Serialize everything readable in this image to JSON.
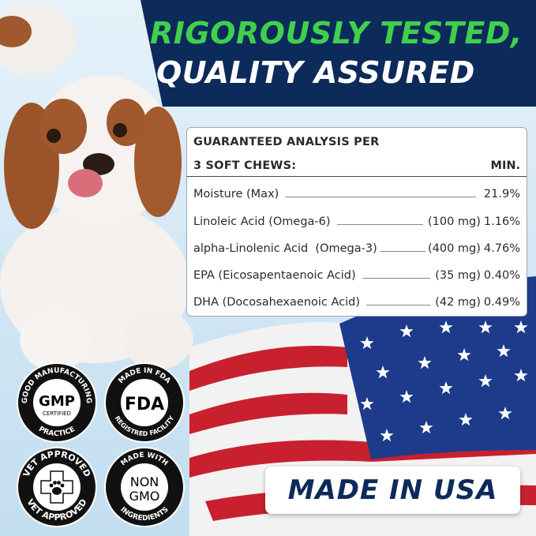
{
  "header": {
    "line1": "RIGOROUSLY TESTED,",
    "line2": "QUALITY ASSURED"
  },
  "analysis": {
    "title_line1": "GUARANTEED ANALYSIS PER",
    "title_line2": "3 SOFT CHEWS:",
    "min_label": "MIN.",
    "rows": [
      {
        "name": "Moisture (Max)",
        "amount": "",
        "value": "21.9%"
      },
      {
        "name": "Linoleic Acid (Omega-6)",
        "amount": "(100 mg)",
        "value": "1.16%"
      },
      {
        "name": "alpha-Linolenic Acid  (Omega-3)",
        "amount": "(400 mg)",
        "value": "4.76%"
      },
      {
        "name": "EPA (Eicosapentaenoic Acid)",
        "amount": "(35 mg)",
        "value": "0.40%"
      },
      {
        "name": "DHA (Docosahexaenoic Acid)",
        "amount": "(42 mg)",
        "value": "0.49%"
      }
    ]
  },
  "badges": [
    {
      "top": "GOOD MANUFACTURING",
      "center1": "GMP",
      "center2": "CERTIFIED",
      "bottom": "PRACTICE"
    },
    {
      "top": "MADE IN FDA",
      "center1": "FDA",
      "center2": "",
      "bottom": "REGISTRED FACILITY"
    },
    {
      "top": "VET APPROVED",
      "center1": "",
      "center2": "",
      "bottom": "VET APPROVED",
      "icon": "cross-paw-icon"
    },
    {
      "top": "MADE WITH",
      "center1": "NON",
      "center2": "GMO",
      "bottom": "INGREDIENTS"
    }
  ],
  "made_in": "MADE IN USA",
  "colors": {
    "navy": "#0c2a5a",
    "green": "#3fd04e",
    "background": "#cfe5f3"
  }
}
